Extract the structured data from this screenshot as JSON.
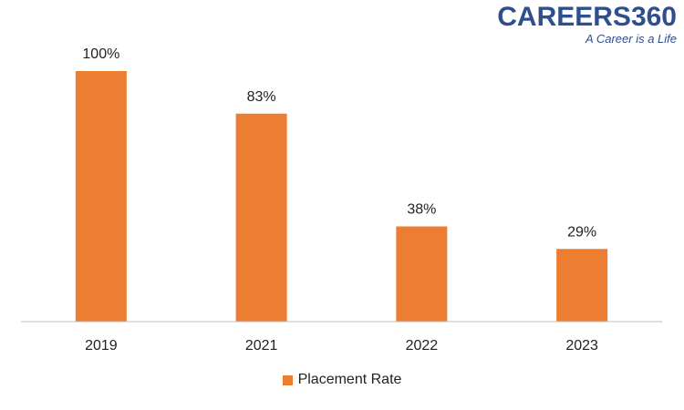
{
  "logo": {
    "text": "CAREERS360",
    "tagline": "A Career is a Life"
  },
  "chart_data": {
    "type": "bar",
    "categories": [
      "2019",
      "2021",
      "2022",
      "2023"
    ],
    "series": [
      {
        "name": "Placement Rate",
        "values": [
          100,
          83,
          38,
          29
        ],
        "color": "#ed7d31"
      }
    ],
    "data_labels": [
      "100%",
      "83%",
      "38%",
      "29%"
    ],
    "ylim": [
      0,
      100
    ],
    "grid": false,
    "legend_position": "bottom",
    "axis_color": "#bfbfbf"
  }
}
